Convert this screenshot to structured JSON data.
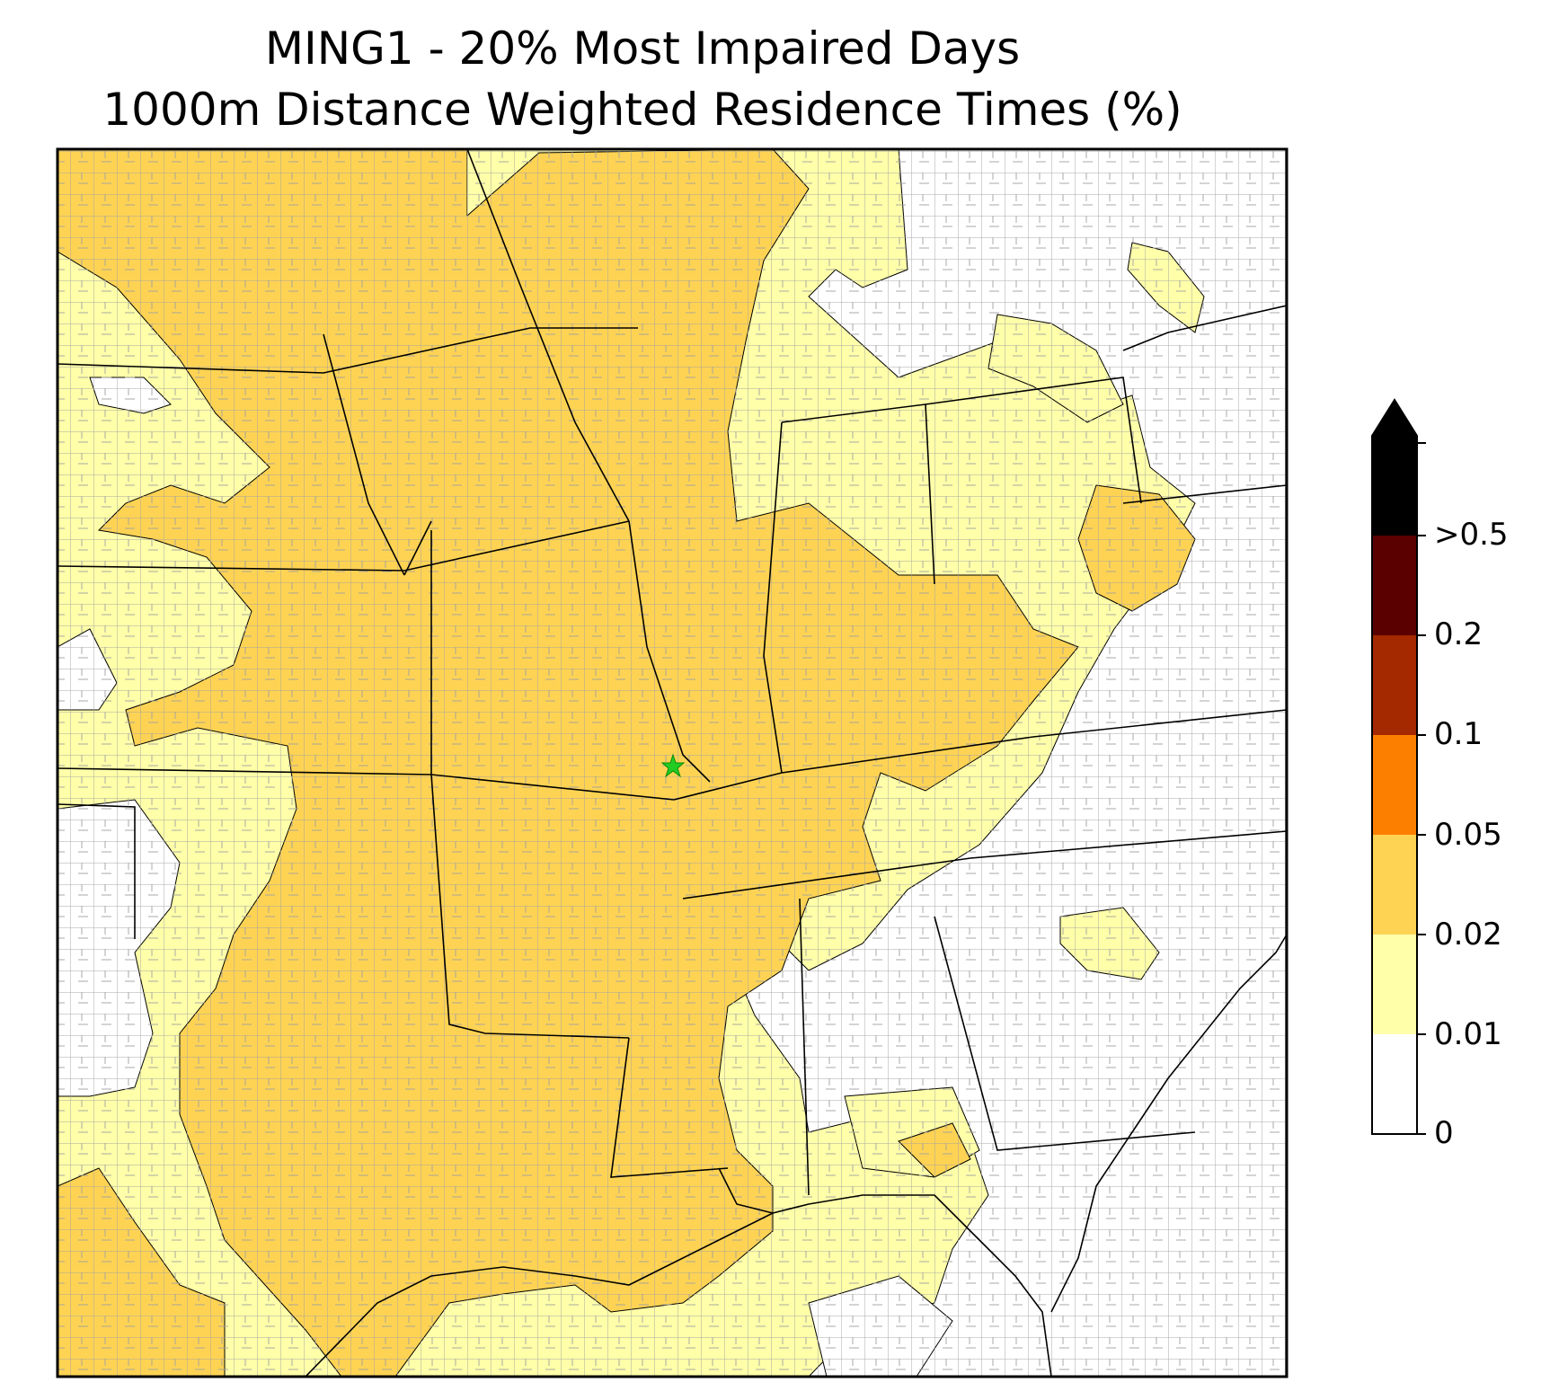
{
  "title": {
    "line1": "MING1 - 20% Most Impaired Days",
    "line2": "1000m Distance Weighted Residence Times (%)"
  },
  "map": {
    "region": "Central and Eastern United States with state and county boundaries",
    "receptor_marker": {
      "symbol": "star",
      "color": "#22cc22"
    },
    "colors": {
      "ocean_and_land_outline": "#000000",
      "county_lines": "#a0a0a0",
      "state_lines": "#000000"
    }
  },
  "colorbar": {
    "extend": "max",
    "levels": [
      "0",
      "0.01",
      "0.02",
      "0.05",
      "0.1",
      "0.2",
      ">0.5"
    ],
    "colors": [
      "#ffffff",
      "#ffffaa",
      "#fed354",
      "#fd7f00",
      "#a42800",
      "#5b0000",
      "#000000"
    ],
    "arrow_color": "#000000"
  }
}
